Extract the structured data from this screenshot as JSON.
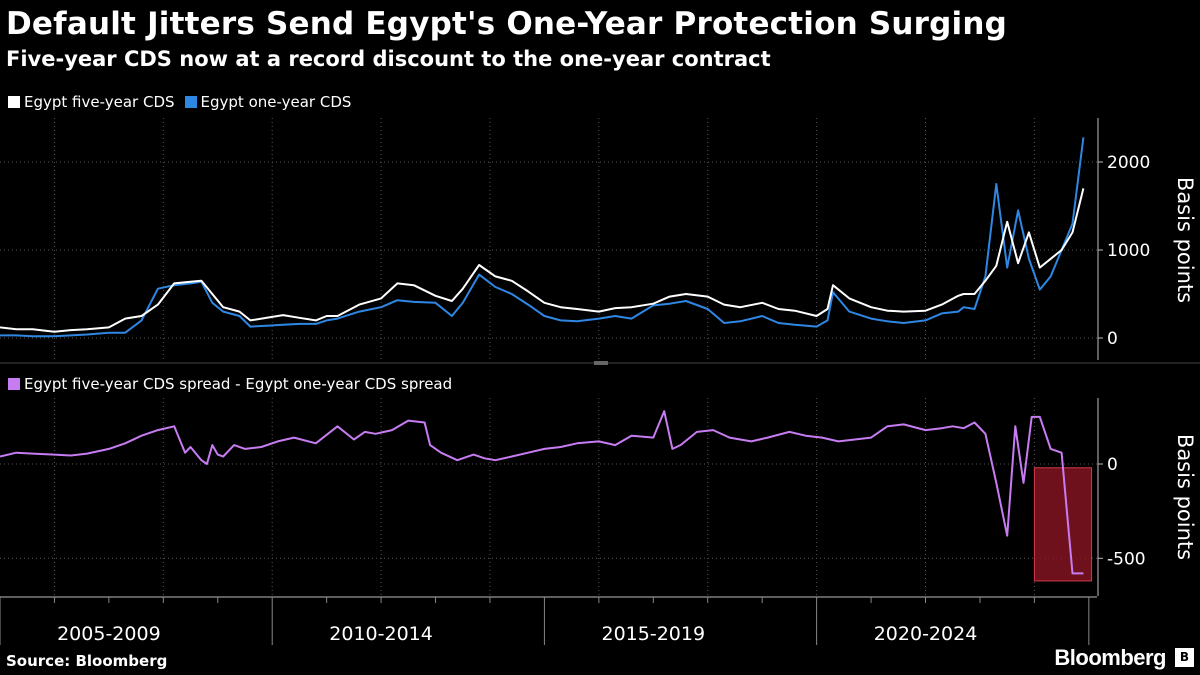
{
  "title": "Default Jitters Send Egypt's One-Year Protection Surging",
  "subtitle": "Five-year CDS now at a record discount to the one-year contract",
  "source": "Source: Bloomberg",
  "brand": "Bloomberg",
  "colors": {
    "background": "#000000",
    "five_year": "#ffffff",
    "one_year": "#2f87e4",
    "spread": "#c77cf2",
    "highlight": "#8b1524"
  },
  "chart_data": [
    {
      "type": "line",
      "legend": [
        "Egypt five-year CDS",
        "Egypt one-year CDS"
      ],
      "ylabel": "Basis points",
      "yticks": [
        0,
        1000,
        2000
      ],
      "ylim": [
        -250,
        2500
      ],
      "xlim": [
        2005.0,
        2025.15
      ],
      "series": [
        {
          "name": "Egypt five-year CDS",
          "x": [
            2005.0,
            2005.3,
            2005.6,
            2006.0,
            2006.3,
            2006.6,
            2007.0,
            2007.3,
            2007.6,
            2007.9,
            2008.2,
            2008.5,
            2008.7,
            2008.9,
            2009.1,
            2009.4,
            2009.6,
            2009.9,
            2010.2,
            2010.5,
            2010.8,
            2011.0,
            2011.2,
            2011.6,
            2012.0,
            2012.3,
            2012.6,
            2013.0,
            2013.3,
            2013.5,
            2013.8,
            2014.1,
            2014.4,
            2014.7,
            2015.0,
            2015.3,
            2015.6,
            2016.0,
            2016.3,
            2016.6,
            2017.0,
            2017.3,
            2017.6,
            2018.0,
            2018.3,
            2018.6,
            2019.0,
            2019.3,
            2019.6,
            2020.0,
            2020.2,
            2020.3,
            2020.6,
            2021.0,
            2021.3,
            2021.6,
            2022.0,
            2022.3,
            2022.6,
            2022.7,
            2022.9,
            2023.1,
            2023.3,
            2023.5,
            2023.7,
            2023.9,
            2024.1,
            2024.3,
            2024.5,
            2024.7,
            2024.9
          ],
          "values": [
            120,
            100,
            100,
            70,
            90,
            100,
            120,
            220,
            250,
            380,
            620,
            640,
            650,
            500,
            350,
            300,
            200,
            230,
            260,
            230,
            200,
            250,
            250,
            380,
            450,
            620,
            600,
            480,
            420,
            560,
            830,
            700,
            650,
            530,
            400,
            350,
            330,
            300,
            340,
            350,
            390,
            470,
            500,
            470,
            380,
            350,
            400,
            330,
            310,
            250,
            330,
            600,
            450,
            350,
            310,
            300,
            310,
            380,
            480,
            500,
            500,
            650,
            820,
            1320,
            850,
            1200,
            800,
            900,
            1000,
            1200,
            1700
          ]
        },
        {
          "name": "Egypt one-year CDS",
          "x": [
            2005.0,
            2005.3,
            2005.6,
            2006.0,
            2006.3,
            2006.6,
            2007.0,
            2007.3,
            2007.6,
            2007.9,
            2008.2,
            2008.5,
            2008.7,
            2008.9,
            2009.1,
            2009.4,
            2009.6,
            2009.9,
            2010.2,
            2010.5,
            2010.8,
            2011.0,
            2011.2,
            2011.6,
            2012.0,
            2012.3,
            2012.6,
            2013.0,
            2013.3,
            2013.5,
            2013.8,
            2014.1,
            2014.4,
            2014.7,
            2015.0,
            2015.3,
            2015.6,
            2016.0,
            2016.3,
            2016.6,
            2017.0,
            2017.3,
            2017.6,
            2018.0,
            2018.3,
            2018.6,
            2019.0,
            2019.3,
            2019.6,
            2020.0,
            2020.2,
            2020.3,
            2020.6,
            2021.0,
            2021.3,
            2021.6,
            2022.0,
            2022.3,
            2022.6,
            2022.7,
            2022.9,
            2023.1,
            2023.3,
            2023.5,
            2023.7,
            2023.9,
            2024.1,
            2024.3,
            2024.5,
            2024.7,
            2024.9
          ],
          "values": [
            30,
            30,
            20,
            20,
            30,
            40,
            60,
            60,
            200,
            560,
            600,
            620,
            640,
            400,
            300,
            250,
            130,
            140,
            150,
            160,
            160,
            200,
            220,
            300,
            350,
            430,
            410,
            400,
            250,
            400,
            720,
            580,
            500,
            380,
            250,
            200,
            190,
            220,
            250,
            220,
            370,
            390,
            420,
            330,
            170,
            190,
            250,
            170,
            150,
            130,
            200,
            520,
            300,
            220,
            190,
            170,
            200,
            280,
            300,
            350,
            330,
            700,
            1750,
            800,
            1450,
            900,
            550,
            700,
            1000,
            1300,
            2280
          ]
        }
      ]
    },
    {
      "type": "line",
      "legend": [
        "Egypt five-year CDS spread - Egypt one-year CDS spread"
      ],
      "ylabel": "Basis points",
      "yticks": [
        -500,
        0
      ],
      "ylim": [
        -700,
        350
      ],
      "xlim": [
        2005.0,
        2025.15
      ],
      "xlabels": [
        "2005-2009",
        "2010-2014",
        "2015-2019",
        "2020-2024"
      ],
      "series": [
        {
          "name": "Egypt five-year CDS spread - Egypt one-year CDS spread",
          "x": [
            2005.0,
            2005.3,
            2005.6,
            2006.0,
            2006.3,
            2006.6,
            2007.0,
            2007.3,
            2007.6,
            2007.9,
            2008.2,
            2008.4,
            2008.5,
            2008.7,
            2008.8,
            2008.9,
            2009.0,
            2009.1,
            2009.3,
            2009.5,
            2009.8,
            2010.1,
            2010.4,
            2010.8,
            2011.2,
            2011.5,
            2011.7,
            2011.9,
            2012.2,
            2012.5,
            2012.8,
            2012.9,
            2013.1,
            2013.4,
            2013.7,
            2013.9,
            2014.1,
            2014.4,
            2014.7,
            2015.0,
            2015.3,
            2015.6,
            2016.0,
            2016.3,
            2016.6,
            2017.0,
            2017.2,
            2017.35,
            2017.5,
            2017.8,
            2018.1,
            2018.4,
            2018.8,
            2019.1,
            2019.5,
            2019.8,
            2020.1,
            2020.4,
            2020.7,
            2021.0,
            2021.3,
            2021.6,
            2022.0,
            2022.3,
            2022.5,
            2022.7,
            2022.9,
            2023.1,
            2023.3,
            2023.5,
            2023.65,
            2023.8,
            2023.95,
            2024.1,
            2024.3,
            2024.5,
            2024.7,
            2024.9
          ],
          "values": [
            40,
            60,
            55,
            50,
            45,
            55,
            80,
            110,
            150,
            180,
            200,
            60,
            90,
            20,
            0,
            100,
            50,
            40,
            100,
            80,
            90,
            120,
            140,
            110,
            200,
            130,
            170,
            160,
            180,
            230,
            220,
            100,
            60,
            20,
            50,
            30,
            20,
            40,
            60,
            80,
            90,
            110,
            120,
            100,
            150,
            140,
            280,
            80,
            100,
            170,
            180,
            140,
            120,
            140,
            170,
            150,
            140,
            120,
            130,
            140,
            200,
            210,
            180,
            190,
            200,
            190,
            220,
            160,
            -100,
            -380,
            200,
            -100,
            250,
            250,
            80,
            60,
            -580,
            -580
          ]
        }
      ]
    }
  ]
}
